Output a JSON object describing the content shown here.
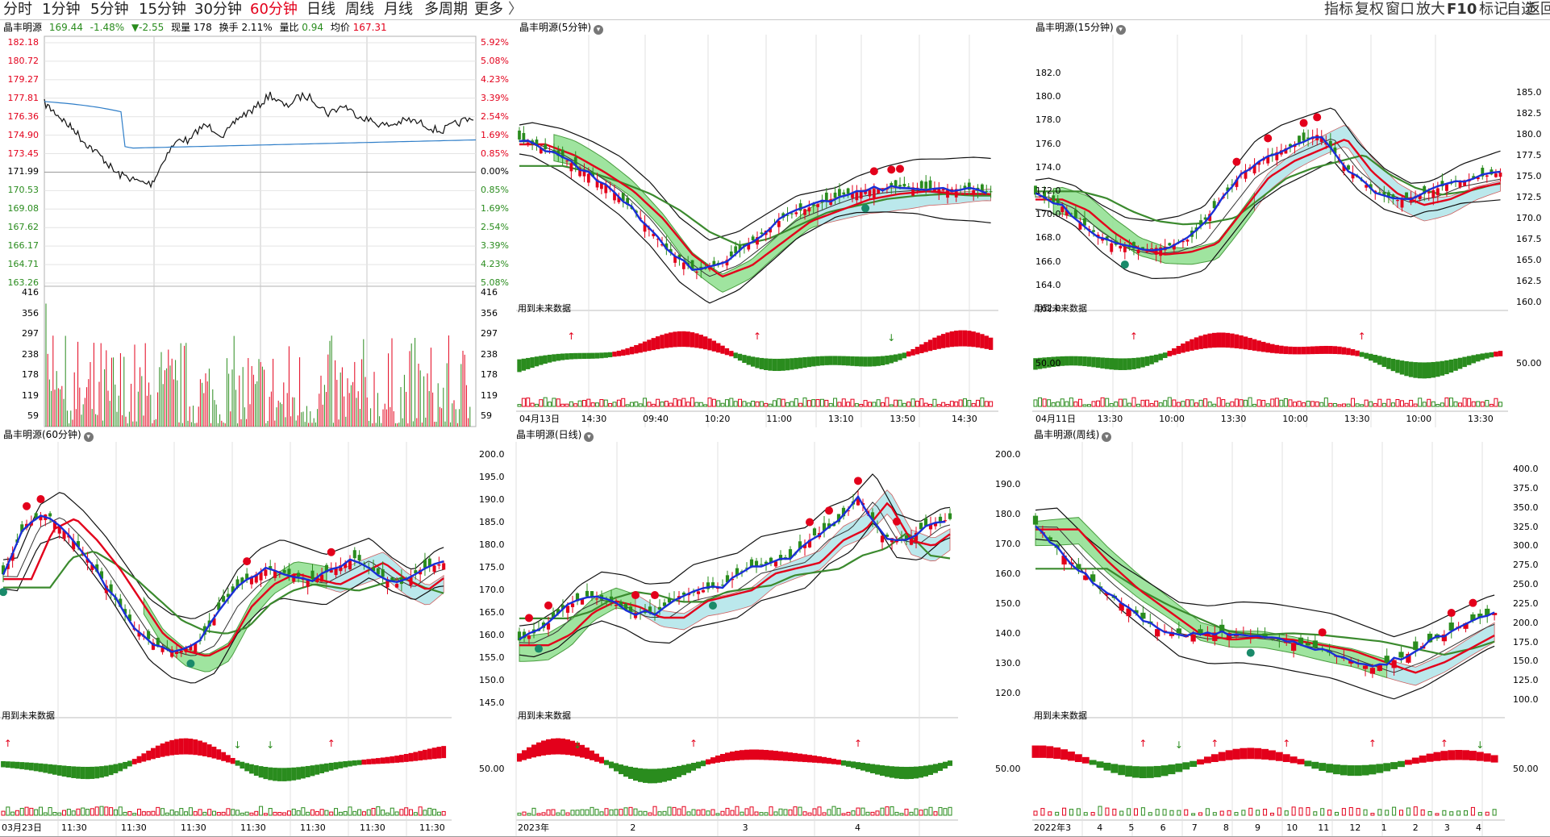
{
  "toolbar": {
    "periods": [
      "分时",
      "1分钟",
      "5分钟",
      "15分钟",
      "30分钟",
      "60分钟",
      "日线",
      "周线",
      "月线",
      "多周期",
      "更多"
    ],
    "active_period": "60分钟",
    "more_arrow": "〉",
    "right_buttons": [
      "指标",
      "复权",
      "窗口",
      "放大",
      "F10",
      "标记",
      "自选",
      "返回"
    ]
  },
  "colors": {
    "up": "#e3001b",
    "down": "#2a8c1e",
    "avg_line": "#2f7ec8",
    "cyan_band": "#b4e6ea",
    "green_band": "#8fe08f",
    "grid": "#c0c0c0"
  },
  "intraday": {
    "title": "晶丰明源",
    "quote": {
      "price": "169.44",
      "change_pct": "-1.48%",
      "change": "▼-2.55",
      "volume_label": "现量",
      "volume": "178",
      "turnover_label": "换手",
      "turnover": "2.11%",
      "ratio_label": "量比",
      "ratio": "0.94",
      "avg_label": "均价",
      "avg": "167.31"
    },
    "price_ticks": [
      "182.18",
      "180.72",
      "179.27",
      "177.81",
      "176.36",
      "174.90",
      "173.45",
      "171.99",
      "170.53",
      "169.08",
      "167.62",
      "166.17",
      "164.71",
      "163.26"
    ],
    "pct_ticks": [
      "5.92%",
      "5.08%",
      "4.23%",
      "3.39%",
      "2.54%",
      "1.69%",
      "0.85%",
      "0.00%",
      "0.85%",
      "1.69%",
      "2.54%",
      "3.39%",
      "4.23%",
      "5.08%"
    ],
    "vol_ticks": [
      "416",
      "356",
      "297",
      "238",
      "178",
      "119",
      "59"
    ]
  },
  "panels": {
    "m5": {
      "title": "晶丰明源(5分钟)",
      "note": "用到未来数据",
      "x_ticks": [
        "04月13日",
        "14:30",
        "09:40",
        "10:20",
        "11:00",
        "13:10",
        "13:50",
        "14:30"
      ],
      "y_ticks": [],
      "sub_tick": ""
    },
    "m15": {
      "title": "晶丰明源(15分钟)",
      "note": "用到未来数据",
      "x_ticks": [
        "04月11日",
        "13:30",
        "10:00",
        "13:30",
        "10:00",
        "13:30",
        "10:00",
        "13:30"
      ],
      "y_ticks": [
        "182.0",
        "180.0",
        "178.0",
        "176.0",
        "174.0",
        "172.0",
        "170.0",
        "168.0",
        "166.0",
        "164.0",
        "162.0"
      ],
      "sub_tick": "50.00"
    },
    "m30": {
      "title": "",
      "y_ticks": [
        "185.0",
        "182.5",
        "180.0",
        "177.5",
        "175.0",
        "172.5",
        "170.0",
        "167.5",
        "165.0",
        "162.5",
        "160.0"
      ],
      "sub_tick": "50.00"
    },
    "m60": {
      "title": "晶丰明源(60分钟)",
      "note": "用到未来数据",
      "x_ticks": [
        "03月23日",
        "11:30",
        "11:30",
        "11:30",
        "11:30",
        "11:30",
        "11:30",
        "11:30"
      ]
    },
    "day": {
      "title": "晶丰明源(日线)",
      "note": "用到未来数据",
      "x_ticks": [
        "2023年",
        "2",
        "3",
        "4"
      ],
      "y_ticks": [
        "200.0",
        "195.0",
        "190.0",
        "185.0",
        "180.0",
        "175.0",
        "170.0",
        "165.0",
        "160.0",
        "155.0",
        "150.0",
        "145.0"
      ],
      "sub_tick": "50.00"
    },
    "week": {
      "title": "晶丰明源(周线)",
      "note": "用到未来数据",
      "x_ticks": [
        "2022年",
        "3",
        "4",
        "5",
        "6",
        "7",
        "8",
        "9",
        "10",
        "11",
        "12",
        "1",
        "2",
        "3",
        "4"
      ],
      "y_ticks": [
        "200.0",
        "190.0",
        "180.0",
        "170.0",
        "160.0",
        "150.0",
        "140.0",
        "130.0",
        "120.0"
      ],
      "sub_tick": "50.00"
    },
    "month": {
      "y_ticks": [
        "400.0",
        "375.0",
        "350.0",
        "325.0",
        "300.0",
        "275.0",
        "250.0",
        "225.0",
        "200.0",
        "175.0",
        "150.0",
        "125.0",
        "100.0"
      ],
      "sub_tick": "50.00"
    }
  }
}
